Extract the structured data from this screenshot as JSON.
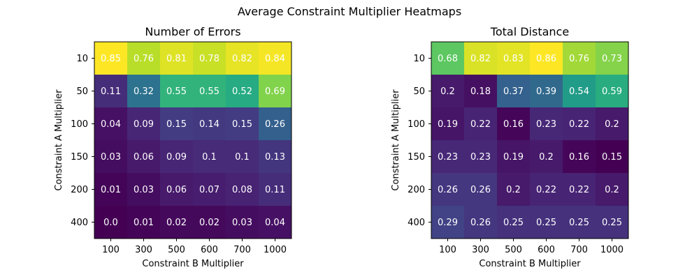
{
  "figure": {
    "suptitle": "Average Constraint Multiplier Heatmaps"
  },
  "chart_data": [
    {
      "type": "heatmap",
      "title": "Number of Errors",
      "xlabel": "Constraint B Multiplier",
      "ylabel": "Constraint A Multiplier",
      "x_categories": [
        "100",
        "300",
        "500",
        "600",
        "700",
        "1000"
      ],
      "y_categories": [
        "10",
        "50",
        "100",
        "150",
        "200",
        "400"
      ],
      "colormap": "viridis",
      "values": [
        [
          0.85,
          0.76,
          0.81,
          0.78,
          0.82,
          0.84
        ],
        [
          0.11,
          0.32,
          0.55,
          0.55,
          0.52,
          0.69
        ],
        [
          0.04,
          0.09,
          0.15,
          0.14,
          0.15,
          0.26
        ],
        [
          0.03,
          0.06,
          0.09,
          0.1,
          0.1,
          0.13
        ],
        [
          0.01,
          0.03,
          0.06,
          0.07,
          0.08,
          0.11
        ],
        [
          0.0,
          0.01,
          0.02,
          0.02,
          0.03,
          0.04
        ]
      ],
      "labels": [
        [
          "0.85",
          "0.76",
          "0.81",
          "0.78",
          "0.82",
          "0.84"
        ],
        [
          "0.11",
          "0.32",
          "0.55",
          "0.55",
          "0.52",
          "0.69"
        ],
        [
          "0.04",
          "0.09",
          "0.15",
          "0.14",
          "0.15",
          "0.26"
        ],
        [
          "0.03",
          "0.06",
          "0.09",
          "0.1",
          "0.1",
          "0.13"
        ],
        [
          "0.01",
          "0.03",
          "0.06",
          "0.07",
          "0.08",
          "0.11"
        ],
        [
          "0.0",
          "0.01",
          "0.02",
          "0.02",
          "0.03",
          "0.04"
        ]
      ]
    },
    {
      "type": "heatmap",
      "title": "Total Distance",
      "xlabel": "Constraint B Multiplier",
      "ylabel": "Constraint A Multiplier",
      "x_categories": [
        "100",
        "300",
        "500",
        "600",
        "700",
        "1000"
      ],
      "y_categories": [
        "10",
        "50",
        "100",
        "150",
        "200",
        "400"
      ],
      "colormap": "viridis",
      "values": [
        [
          0.68,
          0.82,
          0.83,
          0.86,
          0.76,
          0.73
        ],
        [
          0.2,
          0.18,
          0.37,
          0.39,
          0.54,
          0.59
        ],
        [
          0.19,
          0.22,
          0.16,
          0.23,
          0.22,
          0.2
        ],
        [
          0.23,
          0.23,
          0.19,
          0.2,
          0.16,
          0.15
        ],
        [
          0.26,
          0.26,
          0.2,
          0.22,
          0.22,
          0.2
        ],
        [
          0.29,
          0.26,
          0.25,
          0.25,
          0.25,
          0.25
        ]
      ],
      "labels": [
        [
          "0.68",
          "0.82",
          "0.83",
          "0.86",
          "0.76",
          "0.73"
        ],
        [
          "0.2",
          "0.18",
          "0.37",
          "0.39",
          "0.54",
          "0.59"
        ],
        [
          "0.19",
          "0.22",
          "0.16",
          "0.23",
          "0.22",
          "0.2"
        ],
        [
          "0.23",
          "0.23",
          "0.19",
          "0.2",
          "0.16",
          "0.15"
        ],
        [
          "0.26",
          "0.26",
          "0.2",
          "0.22",
          "0.22",
          "0.2"
        ],
        [
          "0.29",
          "0.26",
          "0.25",
          "0.25",
          "0.25",
          "0.25"
        ]
      ]
    }
  ]
}
